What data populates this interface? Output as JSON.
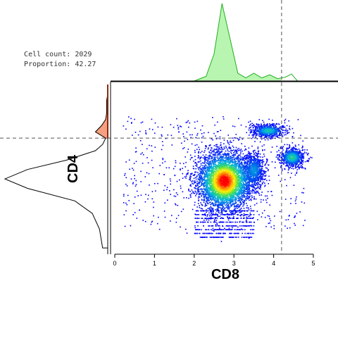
{
  "info": {
    "cell_count_label": "Cell count:",
    "cell_count": "2029",
    "proportion_label": "Proportion:",
    "proportion": "42.27"
  },
  "chart_data": {
    "type": "scatter",
    "subtype": "2d-density-with-marginals",
    "xlabel": "CD8",
    "ylabel": "CD4",
    "xlim": [
      -0.1,
      5.1
    ],
    "x_ticks": [
      "0",
      "1",
      "2",
      "3",
      "4",
      "5"
    ],
    "y_ticks": [],
    "gates": {
      "x_threshold": 4.2,
      "y_threshold": 3.2
    },
    "populations": [
      {
        "x": 2.75,
        "y": 1.85,
        "spread_x": 0.28,
        "spread_y": 0.38,
        "weight": 1.0
      },
      {
        "x": 3.5,
        "y": 2.2,
        "spread_x": 0.1,
        "spread_y": 0.22,
        "weight": 0.22
      },
      {
        "x": 3.85,
        "y": 3.45,
        "spread_x": 0.16,
        "spread_y": 0.08,
        "weight": 0.35
      },
      {
        "x": 4.45,
        "y": 2.6,
        "spread_x": 0.12,
        "spread_y": 0.12,
        "weight": 0.4
      }
    ],
    "top_marginal": {
      "x": [
        2.0,
        2.3,
        2.5,
        2.7,
        2.9,
        3.1,
        3.3,
        3.5,
        3.7,
        3.9,
        4.1,
        4.3,
        4.45,
        4.6
      ],
      "density": [
        0.0,
        0.06,
        0.35,
        1.0,
        0.55,
        0.1,
        0.04,
        0.1,
        0.04,
        0.08,
        0.03,
        0.05,
        0.09,
        0.0
      ]
    },
    "left_marginal": {
      "y": [
        -0.3,
        0.3,
        0.8,
        1.2,
        1.6,
        1.9,
        2.2,
        2.5,
        2.8,
        3.0,
        3.2,
        3.4,
        3.6,
        3.8,
        4.0,
        4.2,
        4.4,
        4.6,
        4.8
      ],
      "density": [
        0.05,
        0.08,
        0.15,
        0.32,
        0.78,
        1.0,
        0.78,
        0.4,
        0.12,
        0.05,
        0.02,
        0.12,
        0.06,
        0.02,
        0.01,
        0.01,
        0.01,
        0.0,
        0.0
      ]
    },
    "colors": {
      "density_low": "#0000ff",
      "density_mid": "#00c8c8",
      "density_high": "#ffff00",
      "density_peak": "#ff0000",
      "top_marginal_fill": "#b8f5b0",
      "top_marginal_line": "#22b022",
      "left_marginal_fill": "#f5a080",
      "gate_line": "#555555"
    }
  }
}
